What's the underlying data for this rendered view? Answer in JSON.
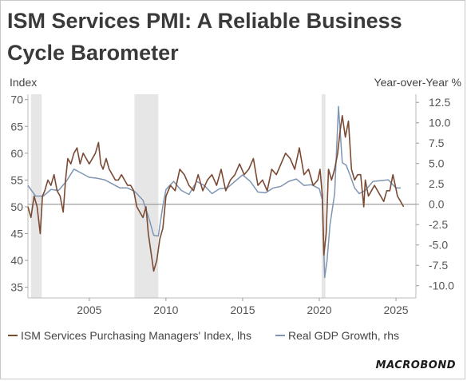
{
  "title": "ISM Services PMI: A Reliable Business Cycle Barometer",
  "brand": "MACROBOND",
  "chart_data": {
    "type": "line",
    "title": "ISM Services PMI: A Reliable Business Cycle Barometer",
    "y_left_label": "Index",
    "y_right_label": "Year-over-Year %",
    "y_left_range": [
      33,
      71
    ],
    "y_right_range": [
      -11.5,
      13.5
    ],
    "y_left_ticks": [
      35,
      40,
      45,
      50,
      55,
      60,
      65,
      70
    ],
    "y_right_ticks": [
      -10.0,
      -7.5,
      -5.0,
      -2.5,
      0.0,
      2.5,
      5.0,
      7.5,
      10.0,
      12.5
    ],
    "y_right_tick_labels": [
      "-10.0",
      "-7.5",
      "-5.0",
      "-2.5",
      "0.0",
      "2.5",
      "5.0",
      "7.5",
      "10.0",
      "12.5"
    ],
    "x_range": [
      2001.0,
      2026.3
    ],
    "x_ticks": [
      2005,
      2010,
      2015,
      2020,
      2025
    ],
    "zero_line_right": 0,
    "recessions": [
      [
        2001.2,
        2001.9
      ],
      [
        2007.95,
        2009.5
      ],
      [
        2020.15,
        2020.4
      ]
    ],
    "grid": false,
    "legend_position": "bottom",
    "colors": {
      "pmi": "#7b4a34",
      "gdp": "#7e95b3",
      "recession": "#e6e6e6",
      "zero_line": "#888888"
    },
    "series": [
      {
        "name": "ISM Services Purchasing Managers' Index, lhs",
        "axis": "left",
        "x": [
          2001.0,
          2001.2,
          2001.4,
          2001.6,
          2001.8,
          2001.95,
          2002.1,
          2002.3,
          2002.5,
          2002.7,
          2002.9,
          2003.1,
          2003.3,
          2003.45,
          2003.6,
          2003.8,
          2004.0,
          2004.2,
          2004.4,
          2004.6,
          2004.8,
          2005.0,
          2005.2,
          2005.4,
          2005.6,
          2005.75,
          2005.9,
          2006.1,
          2006.3,
          2006.5,
          2006.7,
          2006.9,
          2007.1,
          2007.3,
          2007.5,
          2007.7,
          2007.9,
          2008.1,
          2008.3,
          2008.5,
          2008.7,
          2008.85,
          2009.0,
          2009.2,
          2009.4,
          2009.6,
          2009.8,
          2010.0,
          2010.3,
          2010.6,
          2010.9,
          2011.2,
          2011.5,
          2011.8,
          2012.1,
          2012.4,
          2012.7,
          2013.0,
          2013.3,
          2013.6,
          2013.9,
          2014.2,
          2014.5,
          2014.8,
          2015.1,
          2015.4,
          2015.7,
          2016.0,
          2016.3,
          2016.6,
          2016.9,
          2017.2,
          2017.5,
          2017.8,
          2018.1,
          2018.4,
          2018.7,
          2019.0,
          2019.3,
          2019.6,
          2019.9,
          2020.05,
          2020.2,
          2020.3,
          2020.45,
          2020.6,
          2020.8,
          2021.0,
          2021.2,
          2021.35,
          2021.5,
          2021.7,
          2021.9,
          2022.1,
          2022.3,
          2022.5,
          2022.7,
          2022.9,
          2023.0,
          2023.2,
          2023.4,
          2023.6,
          2023.8,
          2024.0,
          2024.2,
          2024.4,
          2024.6,
          2024.8,
          2024.95,
          2025.1,
          2025.3,
          2025.5
        ],
        "values": [
          50,
          48,
          52,
          50,
          45,
          52,
          53,
          55,
          54,
          56,
          53,
          52,
          49,
          55,
          59,
          58,
          60,
          61,
          58,
          60,
          59,
          58,
          59,
          60,
          62,
          58,
          57,
          59,
          57,
          56,
          55,
          55,
          56,
          55,
          54,
          54,
          53,
          50,
          49,
          48,
          50,
          45,
          42,
          38,
          40,
          44,
          46,
          52,
          54,
          53,
          57,
          56,
          54,
          53,
          56,
          53,
          55,
          56,
          54,
          57,
          53,
          55,
          56,
          58,
          56,
          57,
          59,
          54,
          55,
          53,
          57,
          56,
          58,
          60,
          59,
          57,
          61,
          56,
          57,
          54,
          55,
          57,
          52,
          41,
          45,
          57,
          55,
          57,
          60,
          64,
          67,
          63,
          66,
          57,
          55,
          56,
          56,
          50,
          55,
          52,
          53,
          54,
          53,
          52,
          51,
          53,
          53,
          56,
          54,
          52,
          51,
          50
        ]
      },
      {
        "name": "Real GDP Growth, rhs",
        "axis": "right",
        "x": [
          2001.0,
          2001.5,
          2002.0,
          2002.5,
          2003.0,
          2003.5,
          2004.0,
          2004.5,
          2005.0,
          2005.5,
          2006.0,
          2006.5,
          2007.0,
          2007.5,
          2008.0,
          2008.5,
          2008.9,
          2009.2,
          2009.5,
          2009.8,
          2010.0,
          2010.5,
          2011.0,
          2011.5,
          2012.0,
          2012.5,
          2013.0,
          2013.5,
          2014.0,
          2014.5,
          2015.0,
          2015.5,
          2016.0,
          2016.5,
          2017.0,
          2017.5,
          2018.0,
          2018.5,
          2019.0,
          2019.5,
          2020.0,
          2020.2,
          2020.35,
          2020.5,
          2020.7,
          2021.0,
          2021.25,
          2021.5,
          2021.75,
          2022.0,
          2022.3,
          2022.6,
          2023.0,
          2023.5,
          2024.0,
          2024.5,
          2025.0,
          2025.3
        ],
        "values": [
          2.3,
          1.0,
          1.0,
          1.8,
          1.7,
          2.8,
          4.3,
          3.8,
          3.3,
          3.2,
          3.0,
          2.5,
          2.0,
          2.0,
          1.5,
          0.5,
          -1.8,
          -3.8,
          -3.9,
          -0.2,
          1.8,
          2.8,
          1.7,
          1.2,
          2.8,
          2.3,
          1.3,
          1.9,
          2.0,
          2.8,
          3.6,
          2.8,
          1.5,
          1.4,
          2.0,
          2.2,
          2.8,
          3.1,
          2.3,
          2.4,
          1.9,
          0.5,
          -9.0,
          -7.0,
          -2.5,
          1.3,
          12.0,
          5.1,
          4.8,
          3.6,
          2.0,
          1.3,
          1.7,
          2.8,
          2.9,
          3.0,
          2.0,
          2.0
        ]
      }
    ]
  }
}
